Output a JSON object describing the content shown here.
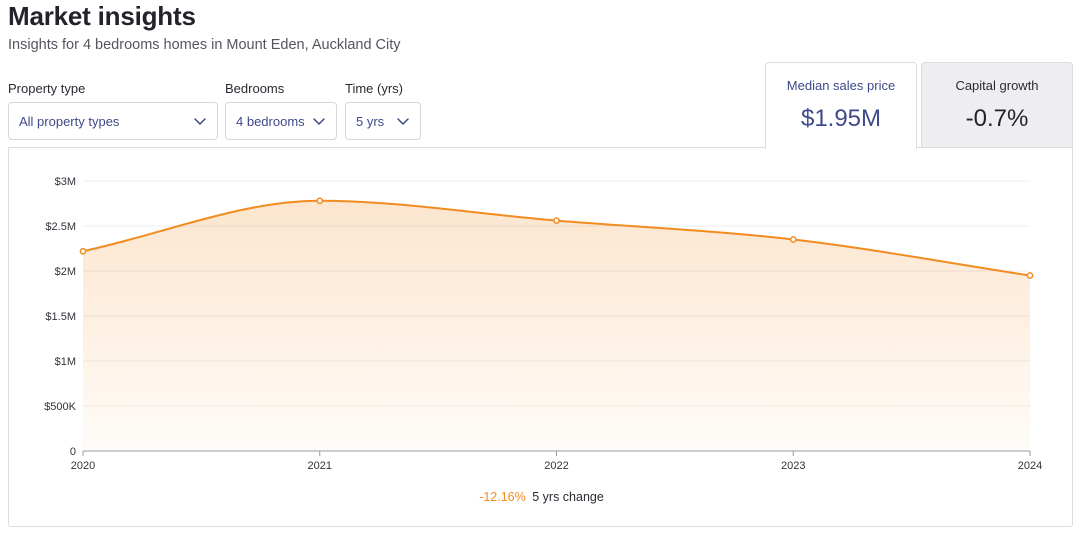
{
  "header": {
    "title": "Market insights",
    "subtitle": "Insights for 4 bedrooms homes in Mount Eden, Auckland City"
  },
  "filters": {
    "property_type": {
      "label": "Property type",
      "value": "All property types"
    },
    "bedrooms": {
      "label": "Bedrooms",
      "value": "4 bedrooms"
    },
    "time": {
      "label": "Time (yrs)",
      "value": "5 yrs"
    }
  },
  "tabs": [
    {
      "label": "Median sales price",
      "value": "$1.95M",
      "active": true
    },
    {
      "label": "Capital growth",
      "value": "-0.7%",
      "active": false
    }
  ],
  "summary": {
    "change_pct": "-12.16%",
    "change_label": "5 yrs change"
  },
  "colors": {
    "accent": "#f28b20",
    "brand": "#3f4a8a"
  },
  "icons": {
    "dropdown": "chevron-down-icon"
  },
  "chart_data": {
    "type": "area",
    "x": [
      2020,
      2021,
      2022,
      2023,
      2024
    ],
    "values": [
      2220000,
      2780000,
      2560000,
      2350000,
      1950000
    ],
    "ylim": [
      0,
      3000000
    ],
    "yticks": [
      {
        "value": 0,
        "label": "0"
      },
      {
        "value": 500000,
        "label": "$500K"
      },
      {
        "value": 1000000,
        "label": "$1M"
      },
      {
        "value": 1500000,
        "label": "$1.5M"
      },
      {
        "value": 2000000,
        "label": "$2M"
      },
      {
        "value": 2500000,
        "label": "$2.5M"
      },
      {
        "value": 3000000,
        "label": "$3M"
      }
    ],
    "xticks": [
      "2020",
      "2021",
      "2022",
      "2023",
      "2024"
    ],
    "grid": true,
    "color": "#f28b20"
  }
}
